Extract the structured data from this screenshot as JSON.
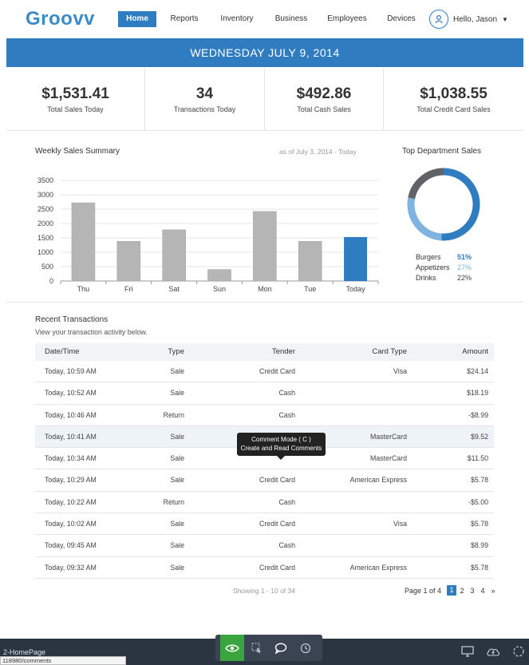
{
  "app": {
    "logo": "Groovv"
  },
  "nav": {
    "items": [
      {
        "label": "Home",
        "active": true
      },
      {
        "label": "Reports",
        "active": false
      },
      {
        "label": "Inventory",
        "active": false
      },
      {
        "label": "Business",
        "active": false
      },
      {
        "label": "Employees",
        "active": false
      },
      {
        "label": "Devices",
        "active": false
      }
    ],
    "user": {
      "greeting": "Hello, Jason",
      "icon": "user-icon"
    }
  },
  "banner": {
    "date": "WEDNESDAY JULY 9, 2014"
  },
  "stats": [
    {
      "value": "$1,531.41",
      "label": "Total Sales Today"
    },
    {
      "value": "34",
      "label": "Transactions Today"
    },
    {
      "value": "$492.86",
      "label": "Total Cash Sales"
    },
    {
      "value": "$1,038.55",
      "label": "Total Credit Card Sales"
    }
  ],
  "weekly": {
    "title": "Weekly Sales Summary",
    "as_of": "as of July 3, 2014 - Today"
  },
  "department": {
    "title": "Top Department Sales",
    "items": [
      {
        "name": "Burgers",
        "pct": "51%",
        "color": "#2f7cc0"
      },
      {
        "name": "Appetizers",
        "pct": "27%",
        "color": "#7fb3e0"
      },
      {
        "name": "Drinks",
        "pct": "22%",
        "color": "#5f6368"
      }
    ]
  },
  "chart_data": [
    {
      "type": "bar",
      "title": "Weekly Sales Summary",
      "categories": [
        "Thu",
        "Fri",
        "Sat",
        "Sun",
        "Mon",
        "Tue",
        "Today"
      ],
      "values": [
        2720,
        1380,
        1780,
        400,
        2420,
        1380,
        1530
      ],
      "colors": [
        "#b5b5b5",
        "#b5b5b5",
        "#b5b5b5",
        "#b5b5b5",
        "#b5b5b5",
        "#b5b5b5",
        "#2f7cc0"
      ],
      "yticks": [
        0,
        500,
        1000,
        1500,
        2000,
        2500,
        3000,
        3500
      ],
      "ylim": [
        0,
        3500
      ],
      "grid": true,
      "legend": "none"
    },
    {
      "type": "pie",
      "title": "Top Department Sales",
      "labels": [
        "Burgers",
        "Appetizers",
        "Drinks"
      ],
      "values": [
        51,
        27,
        22
      ],
      "colors": [
        "#2f7cc0",
        "#7fb3e0",
        "#5f6368"
      ],
      "donut": true
    }
  ],
  "transactions": {
    "title": "Recent Transactions",
    "subtitle": "View your transaction activity below.",
    "columns": [
      "Date/Time",
      "Type",
      "Tender",
      "Card Type",
      "Amount"
    ],
    "rows": [
      [
        "Today, 10:59 AM",
        "Sale",
        "Credit Card",
        "Visa",
        "$24.14"
      ],
      [
        "Today, 10:52 AM",
        "Sale",
        "Cash",
        "",
        "$18.19"
      ],
      [
        "Today, 10:46 AM",
        "Return",
        "Cash",
        "",
        "-$8.99"
      ],
      [
        "Today, 10:41 AM",
        "Sale",
        "",
        "MasterCard",
        "$9.52"
      ],
      [
        "Today, 10:34 AM",
        "Sale",
        "",
        "MasterCard",
        "$11.50"
      ],
      [
        "Today, 10:29 AM",
        "Sale",
        "Credit Card",
        "American Express",
        "$5.78"
      ],
      [
        "Today, 10:22 AM",
        "Return",
        "Cash",
        "",
        "-$5.00"
      ],
      [
        "Today, 10:02 AM",
        "Sale",
        "Credit Card",
        "Visa",
        "$5.78"
      ],
      [
        "Today, 09:45 AM",
        "Sale",
        "Cash",
        "",
        "$8.99"
      ],
      [
        "Today, 09:32 AM",
        "Sale",
        "Credit Card",
        "American Express",
        "$5.78"
      ]
    ],
    "showing": "Showing 1 - 10 of 34",
    "pager": {
      "label": "Page 1 of 4",
      "pages": [
        "1",
        "2",
        "3",
        "4"
      ],
      "next": "»",
      "current": "1"
    }
  },
  "tooltip": {
    "line1": "Comment Mode ( C )",
    "line2": "Create and Read Comments"
  },
  "bottom": {
    "page_name": "2-HomePage",
    "url": "118980/comments",
    "tools": [
      "eye-icon",
      "select-icon",
      "comment-icon",
      "history-icon"
    ],
    "right_tools": [
      "monitor-icon",
      "cloud-upload-icon",
      "circle-icon"
    ]
  }
}
